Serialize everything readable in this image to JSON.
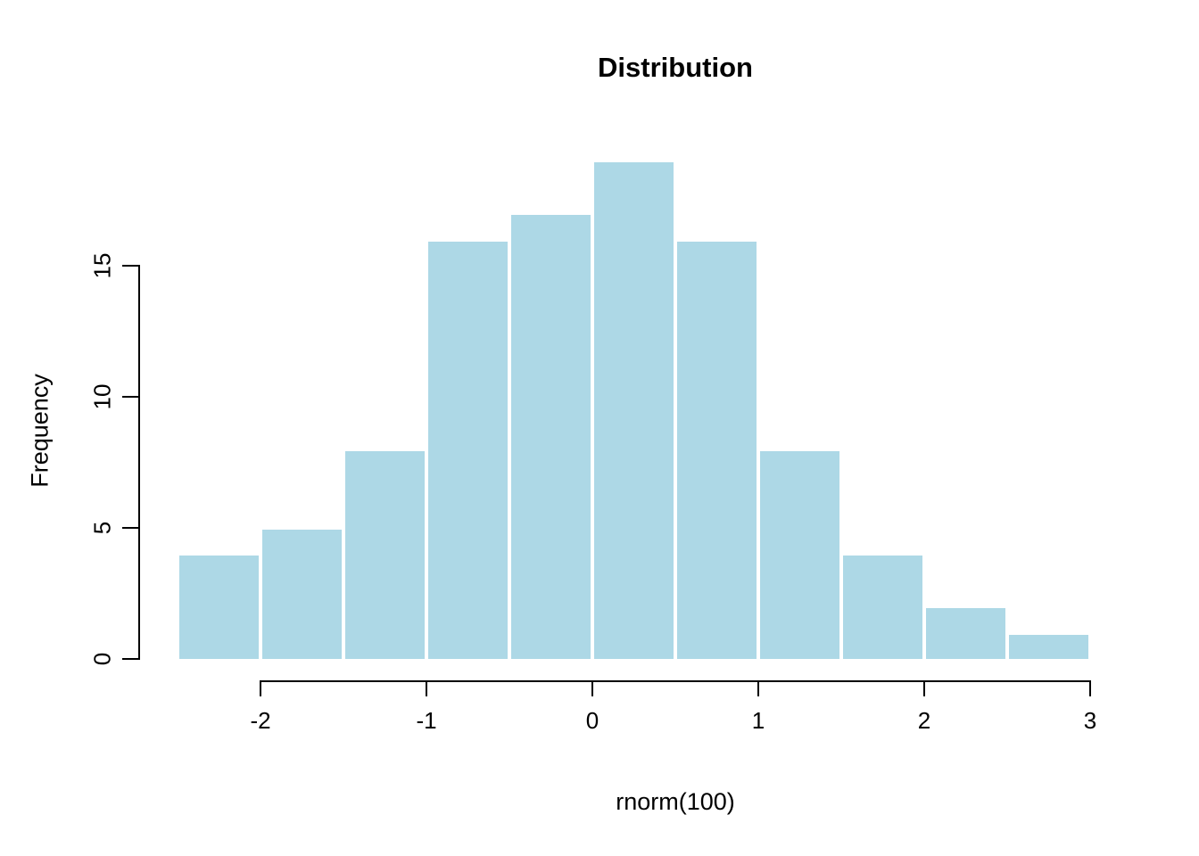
{
  "chart_data": {
    "type": "bar",
    "subtype": "histogram",
    "title": "Distribution",
    "xlabel": "rnorm(100)",
    "ylabel": "Frequency",
    "bin_start": -2.5,
    "bin_width": 0.5,
    "categories": [
      "-2.5 to -2",
      "-2 to -1.5",
      "-1.5 to -1",
      "-1 to -0.5",
      "-0.5 to 0",
      "0 to 0.5",
      "0.5 to 1",
      "1 to 1.5",
      "1.5 to 2",
      "2 to 2.5",
      "2.5 to 3"
    ],
    "values": [
      4,
      5,
      8,
      16,
      17,
      19,
      16,
      8,
      4,
      2,
      1
    ],
    "x_ticks": [
      "-2",
      "-1",
      "0",
      "1",
      "2",
      "3"
    ],
    "x_tick_values": [
      -2,
      -1,
      0,
      1,
      2,
      3
    ],
    "y_ticks": [
      "0",
      "5",
      "10",
      "15"
    ],
    "y_tick_values": [
      0,
      5,
      10,
      15
    ],
    "xlim": [
      -2.5,
      3
    ],
    "ylim": [
      0,
      19
    ],
    "grid": false,
    "legend": false,
    "colors": {
      "bar_fill": "#ADD8E6",
      "bar_border": "#FFFFFF",
      "axis": "#000000",
      "text": "#000000",
      "background": "#FFFFFF"
    }
  }
}
